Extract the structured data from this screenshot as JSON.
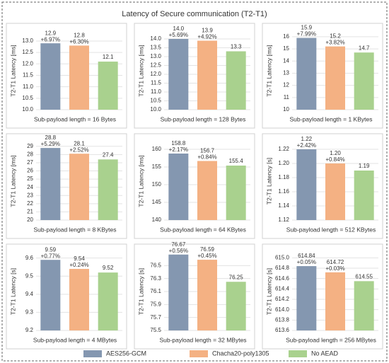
{
  "title": "Latency  of Secure communication (T2-T1)",
  "legend": [
    {
      "name": "AES256-GCM",
      "color": "#8497b0"
    },
    {
      "name": "Chacha20-poly1305",
      "color": "#f4b183"
    },
    {
      "name": "No AEAD",
      "color": "#a9d18e"
    }
  ],
  "chart_data": [
    {
      "type": "bar",
      "ylabel": "T2-T1 Latency [ms]",
      "xlabel": "Sub-payload length = 16 Bytes",
      "values": [
        12.9,
        12.8,
        12.1
      ],
      "value_labels": [
        "12.9",
        "12.8",
        "12.1"
      ],
      "annotations": [
        "+6.97%",
        "+6.30%"
      ],
      "ylim": [
        10,
        13.4
      ],
      "yticks": [
        {
          "value": 10,
          "label": "10.0"
        },
        10.5,
        {
          "value": 11,
          "label": "11.0"
        },
        11.5,
        {
          "value": 12,
          "label": "12.0"
        },
        12.5,
        {
          "value": 13,
          "label": "13.0"
        }
      ],
      "grid": true
    },
    {
      "type": "bar",
      "ylabel": "T2-T1 Latency [ms]",
      "xlabel": "Sub-payload length = 128 Bytes",
      "values": [
        14.0,
        13.9,
        13.3
      ],
      "value_labels": [
        "14.0",
        "13.9",
        "13.3"
      ],
      "annotations": [
        "+5.69%",
        "+4.92%"
      ],
      "ylim": [
        10,
        14.4
      ],
      "yticks": [
        {
          "value": 10,
          "label": "10.0"
        },
        10.5,
        {
          "value": 11,
          "label": "11.0"
        },
        11.5,
        {
          "value": 12,
          "label": "12.0"
        },
        12.5,
        {
          "value": 13,
          "label": "13.0"
        },
        13.5,
        {
          "value": 14,
          "label": "14.0"
        }
      ],
      "grid": true
    },
    {
      "type": "bar",
      "ylabel": "T2-T1 Latency [ms]",
      "xlabel": "Sub-payload length = 1 KBytes",
      "values": [
        15.9,
        15.2,
        14.7
      ],
      "value_labels": [
        "15.9",
        "15.2",
        "14.7"
      ],
      "annotations": [
        "+7.99%",
        "+3.82%"
      ],
      "ylim": [
        10,
        16.4
      ],
      "yticks": [
        10,
        11,
        12,
        13,
        14,
        15,
        16
      ],
      "grid": true
    },
    {
      "type": "bar",
      "ylabel": "T2-T1 Latency [ms]",
      "xlabel": "Sub-payload length = 8 KBytes",
      "values": [
        28.8,
        28.1,
        27.4
      ],
      "value_labels": [
        "28.8",
        "28.1",
        "27.4"
      ],
      "annotations": [
        "+5.29%",
        "+2.52%"
      ],
      "ylim": [
        20,
        29.5
      ],
      "yticks": [
        20,
        21,
        22,
        23,
        24,
        25,
        26,
        27,
        28,
        29
      ],
      "grid": true
    },
    {
      "type": "bar",
      "ylabel": "T2-T1 Latency [ms]",
      "xlabel": "Sub-payload length = 64 KBytes",
      "values": [
        158.8,
        156.7,
        155.4
      ],
      "value_labels": [
        "158.8",
        "156.7",
        "155.4"
      ],
      "annotations": [
        "+2.17%",
        "+0.84%"
      ],
      "ylim": [
        140,
        162
      ],
      "yticks": [
        140,
        145,
        150,
        155,
        160
      ],
      "grid": true
    },
    {
      "type": "bar",
      "ylabel": "T2-T1 Latency [s]",
      "xlabel": "Sub-payload length = 512 KBytes",
      "values": [
        1.22,
        1.2,
        1.19
      ],
      "value_labels": [
        "1.22",
        "1.20",
        "1.19"
      ],
      "annotations": [
        "+2.42%",
        "+0.84%"
      ],
      "ylim": [
        1.12,
        1.23
      ],
      "yticks": [
        1.12,
        1.14,
        1.16,
        1.18,
        {
          "value": 1.2,
          "label": "1.20"
        },
        1.22
      ],
      "grid": true
    },
    {
      "type": "bar",
      "ylabel": "T2-T1 Latency [s]",
      "xlabel": "Sub-payload length = 4 MBytes",
      "values": [
        9.59,
        9.54,
        9.52
      ],
      "value_labels": [
        "9.59",
        "9.54",
        "9.52"
      ],
      "annotations": [
        "+0.77%",
        "+0.24%"
      ],
      "ylim": [
        9.2,
        9.63
      ],
      "yticks": [
        9.2,
        9.3,
        9.4,
        9.5,
        9.6
      ],
      "grid": true
    },
    {
      "type": "bar",
      "ylabel": "T2-T1 Latency [s]",
      "xlabel": "Sub-payload length = 32 MBytes",
      "values": [
        76.67,
        76.59,
        76.25
      ],
      "value_labels": [
        "76.67",
        "76.59",
        "76.25"
      ],
      "annotations": [
        "+0.56%",
        "+0.45%"
      ],
      "ylim": [
        75.5,
        76.7
      ],
      "yticks": [
        75.5,
        75.7,
        75.9,
        76.1,
        76.3,
        76.5
      ],
      "grid": true
    },
    {
      "type": "bar",
      "ylabel": "T2-T1 Latency [s]",
      "xlabel": "Sub-payload length = 256 MBytes",
      "values": [
        614.84,
        614.72,
        614.55
      ],
      "value_labels": [
        "614.84",
        "614.72",
        "614.55"
      ],
      "annotations": [
        "+0.05%",
        "+0.03%"
      ],
      "ylim": [
        613.6,
        615.1
      ],
      "yticks": [
        613.6,
        613.8,
        {
          "value": 614,
          "label": "614.0"
        },
        614.2,
        614.4,
        614.6,
        614.8,
        {
          "value": 615,
          "label": "615.0"
        }
      ],
      "grid": true
    }
  ]
}
